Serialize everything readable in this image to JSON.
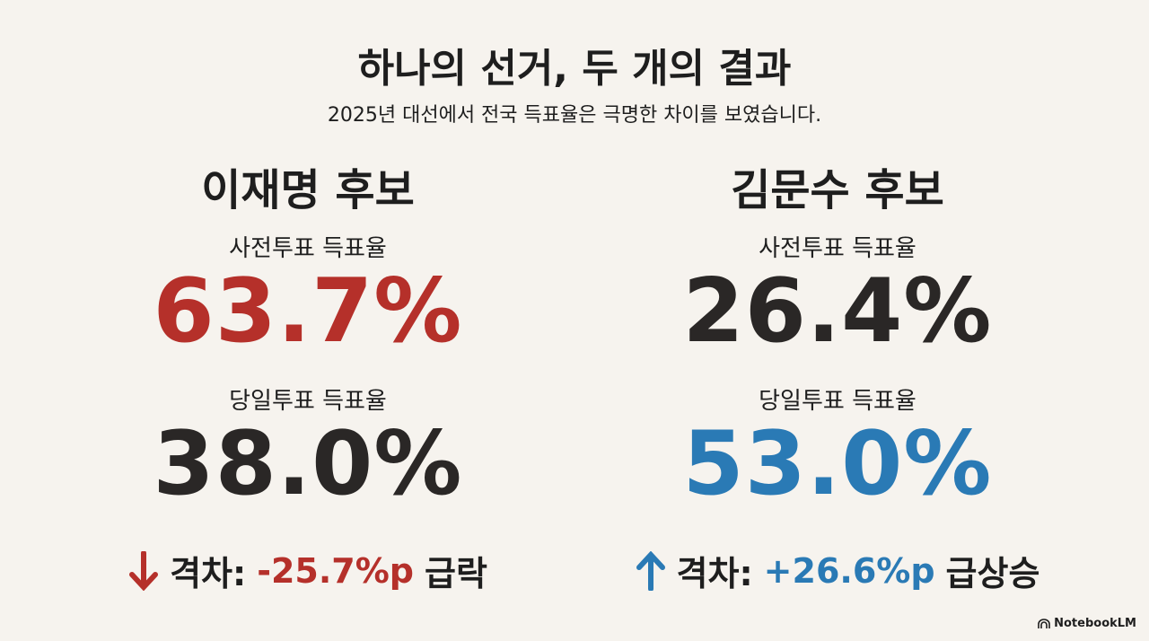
{
  "header": {
    "title": "하나의 선거, 두 개의 결과",
    "subtitle": "2025년 대선에서 전국 득표율은 극명한 차이를 보였습니다."
  },
  "candidates": [
    {
      "name": "이재명 후보",
      "early_label": "사전투표 득표율",
      "early_value": "63.7%",
      "day_label": "당일투표 득표율",
      "day_value": "38.0%",
      "gap_label": "격차:",
      "gap_value": "-25.7%p",
      "gap_note": "급락"
    },
    {
      "name": "김문수 후보",
      "early_label": "사전투표 득표율",
      "early_value": "26.4%",
      "day_label": "당일투표 득표율",
      "day_value": "53.0%",
      "gap_label": "격차:",
      "gap_value": "+26.6%p",
      "gap_note": "급상승"
    }
  ],
  "footer": {
    "brand": "NotebookLM"
  }
}
